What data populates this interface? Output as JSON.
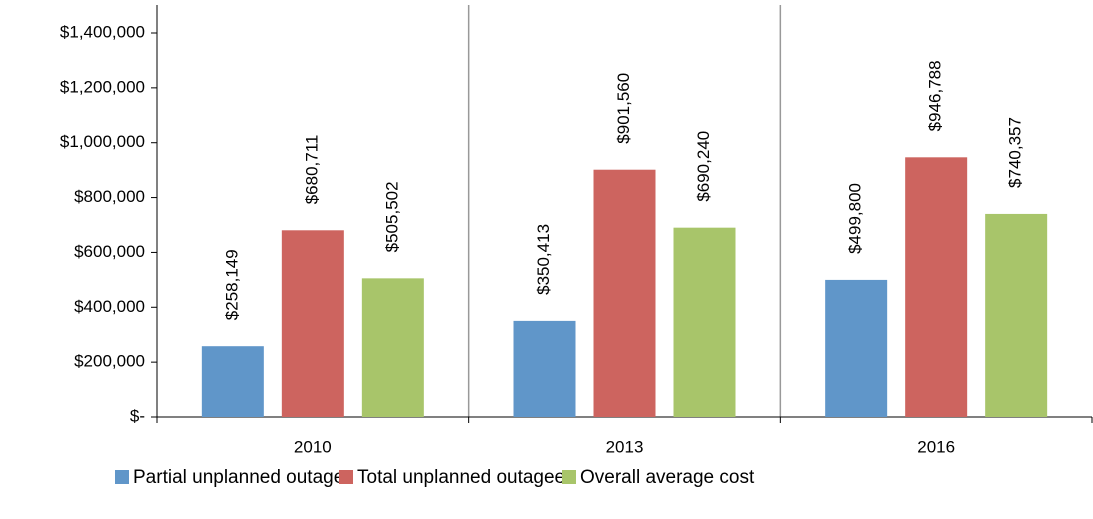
{
  "chart_data": {
    "type": "bar",
    "categories": [
      "2010",
      "2013",
      "2016"
    ],
    "series": [
      {
        "name": "Partial unplanned outage",
        "color": "#6096c9",
        "values": [
          258149,
          350413,
          499800
        ],
        "value_labels": [
          "$258,149",
          "$350,413",
          "$499,800"
        ]
      },
      {
        "name": "Total unplanned outagee",
        "color": "#cd645f",
        "values": [
          680711,
          901560,
          946788
        ],
        "value_labels": [
          "$680,711",
          "$901,560",
          "$946,788"
        ]
      },
      {
        "name": "Overall average cost",
        "color": "#a8c56a",
        "values": [
          505502,
          690240,
          740357
        ],
        "value_labels": [
          "$505,502",
          "$690,240",
          "$740,357"
        ]
      }
    ],
    "ylim": [
      0,
      1400000
    ],
    "yticks": [
      {
        "value": 0,
        "label": "$-"
      },
      {
        "value": 200000,
        "label": "$200,000"
      },
      {
        "value": 400000,
        "label": "$400,000"
      },
      {
        "value": 600000,
        "label": "$600,000"
      },
      {
        "value": 800000,
        "label": "$800,000"
      },
      {
        "value": 1000000,
        "label": "$1,000,000"
      },
      {
        "value": 1200000,
        "label": "$1,200,000"
      },
      {
        "value": 1400000,
        "label": "$1,400,000"
      }
    ],
    "legend": "bottom"
  }
}
